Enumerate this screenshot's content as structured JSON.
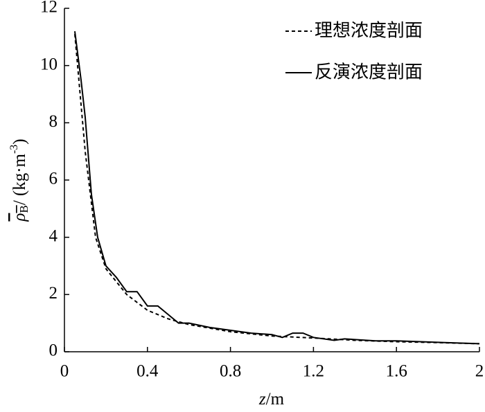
{
  "chart_data": {
    "type": "line",
    "xlabel": {
      "var": "z",
      "unit": "/m"
    },
    "ylabel": {
      "sym": "ρ",
      "sub": "B",
      "unit": "/ (kg·m",
      "exp": "-3",
      "close": ")"
    },
    "xlim": [
      0,
      2
    ],
    "xticks": [
      0,
      0.4,
      0.8,
      1.2,
      1.6,
      2
    ],
    "ylim": [
      0,
      12
    ],
    "yticks": [
      0,
      2,
      4,
      6,
      8,
      10,
      12
    ],
    "legend": "upper right",
    "series": [
      {
        "name": "理想浓度剖面",
        "color": "#000000",
        "linestyle": "dashed",
        "x": [
          0.05,
          0.1,
          0.15,
          0.2,
          0.3,
          0.4,
          0.5,
          0.6,
          0.8,
          1.0,
          1.2,
          1.4,
          1.6,
          1.8,
          2.0
        ],
        "values": [
          11.1,
          7.0,
          4.0,
          2.9,
          2.0,
          1.45,
          1.15,
          0.95,
          0.7,
          0.55,
          0.48,
          0.4,
          0.35,
          0.32,
          0.28
        ]
      },
      {
        "name": "反演浓度剖面",
        "color": "#000000",
        "linestyle": "solid",
        "x": [
          0.05,
          0.08,
          0.1,
          0.13,
          0.16,
          0.2,
          0.25,
          0.3,
          0.35,
          0.4,
          0.45,
          0.5,
          0.55,
          0.6,
          0.7,
          0.8,
          0.9,
          1.0,
          1.05,
          1.1,
          1.15,
          1.2,
          1.3,
          1.35,
          1.5,
          1.6,
          1.8,
          2.0
        ],
        "values": [
          11.2,
          9.5,
          8.2,
          5.5,
          4.0,
          3.0,
          2.6,
          2.1,
          2.1,
          1.6,
          1.6,
          1.3,
          1.0,
          1.0,
          0.85,
          0.75,
          0.65,
          0.6,
          0.5,
          0.65,
          0.65,
          0.5,
          0.4,
          0.45,
          0.38,
          0.38,
          0.33,
          0.28
        ]
      }
    ]
  }
}
